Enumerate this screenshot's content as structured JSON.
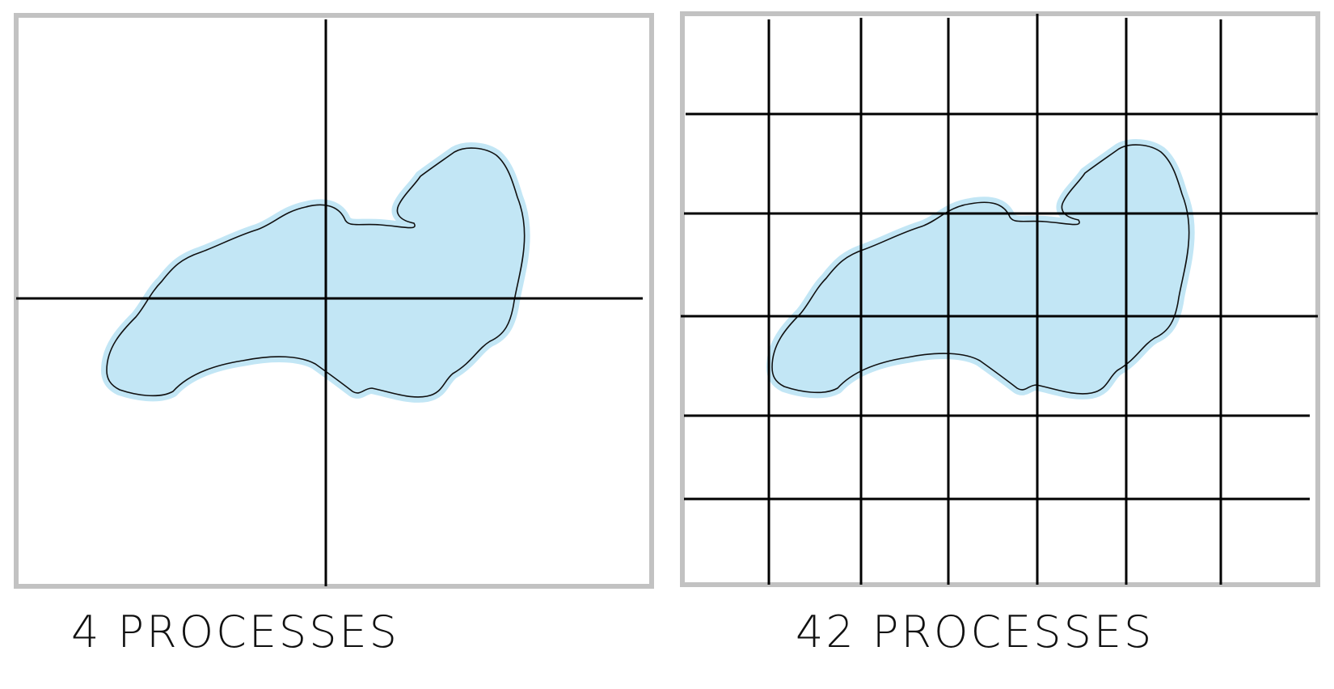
{
  "panels": [
    {
      "id": "four-processes",
      "caption": "4 PROCESSES",
      "process_count": 4,
      "columns": 2,
      "rows": 2
    },
    {
      "id": "forty-two-processes",
      "caption": "42 PROCESSES",
      "process_count": 42,
      "columns": 7,
      "rows": 6
    }
  ],
  "colors": {
    "frame": "#c2c2c2",
    "region_fill": "#c2e6f5",
    "region_outline": "#111111",
    "grid": "#000000",
    "background": "#ffffff"
  }
}
